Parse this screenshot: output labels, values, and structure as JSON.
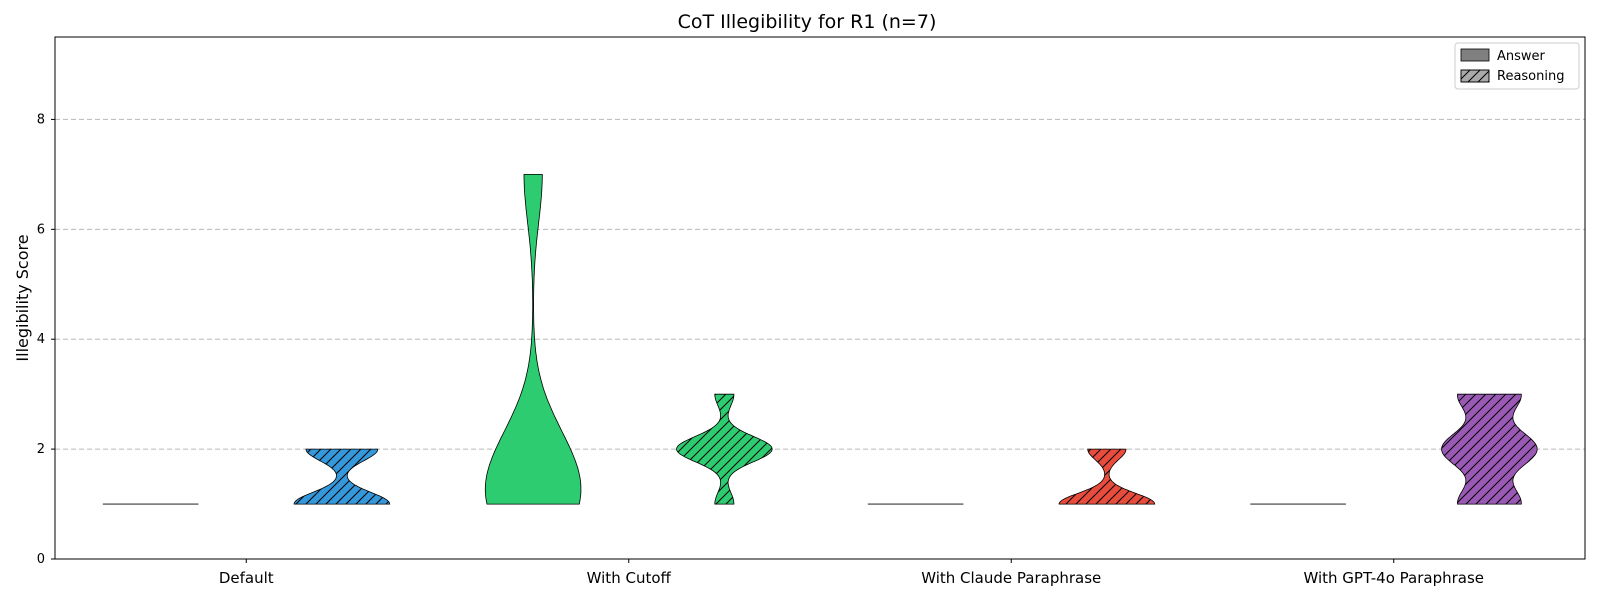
{
  "chart_data": {
    "type": "violin",
    "title": "CoT Illegibility for R1 (n=7)",
    "ylabel": "Illegibility Score",
    "xlabel": "",
    "ylim": [
      0,
      9.5
    ],
    "yticks": [
      0,
      2,
      4,
      6,
      8
    ],
    "grid": "y",
    "legend_position": "top-right",
    "legend": [
      {
        "label": "Answer",
        "hatch": false
      },
      {
        "label": "Reasoning",
        "hatch": true
      }
    ],
    "categories": [
      "Default",
      "With Cutoff",
      "With Claude Paraphrase",
      "With GPT-4o Paraphrase"
    ],
    "groups": [
      {
        "category": "Default",
        "color": "#3498db",
        "answer": [
          1,
          1,
          1,
          1,
          1,
          1,
          1
        ],
        "reasoning": [
          1,
          1,
          1,
          1,
          2,
          2,
          2
        ]
      },
      {
        "category": "With Cutoff",
        "color": "#2ecc71",
        "answer": [
          1,
          1,
          1,
          1,
          2,
          2,
          7
        ],
        "reasoning": [
          1,
          2,
          2,
          2,
          2,
          2,
          3
        ]
      },
      {
        "category": "With Claude Paraphrase",
        "color": "#e74c3c",
        "answer": [
          1,
          1,
          1,
          1,
          1,
          1,
          1
        ],
        "reasoning": [
          1,
          1,
          1,
          1,
          1,
          2,
          2
        ]
      },
      {
        "category": "With GPT-4o Paraphrase",
        "color": "#9b59b6",
        "answer": [
          1,
          1,
          1,
          1,
          1,
          1,
          1
        ],
        "reasoning": [
          1,
          1,
          2,
          2,
          2,
          3,
          3
        ]
      }
    ]
  }
}
